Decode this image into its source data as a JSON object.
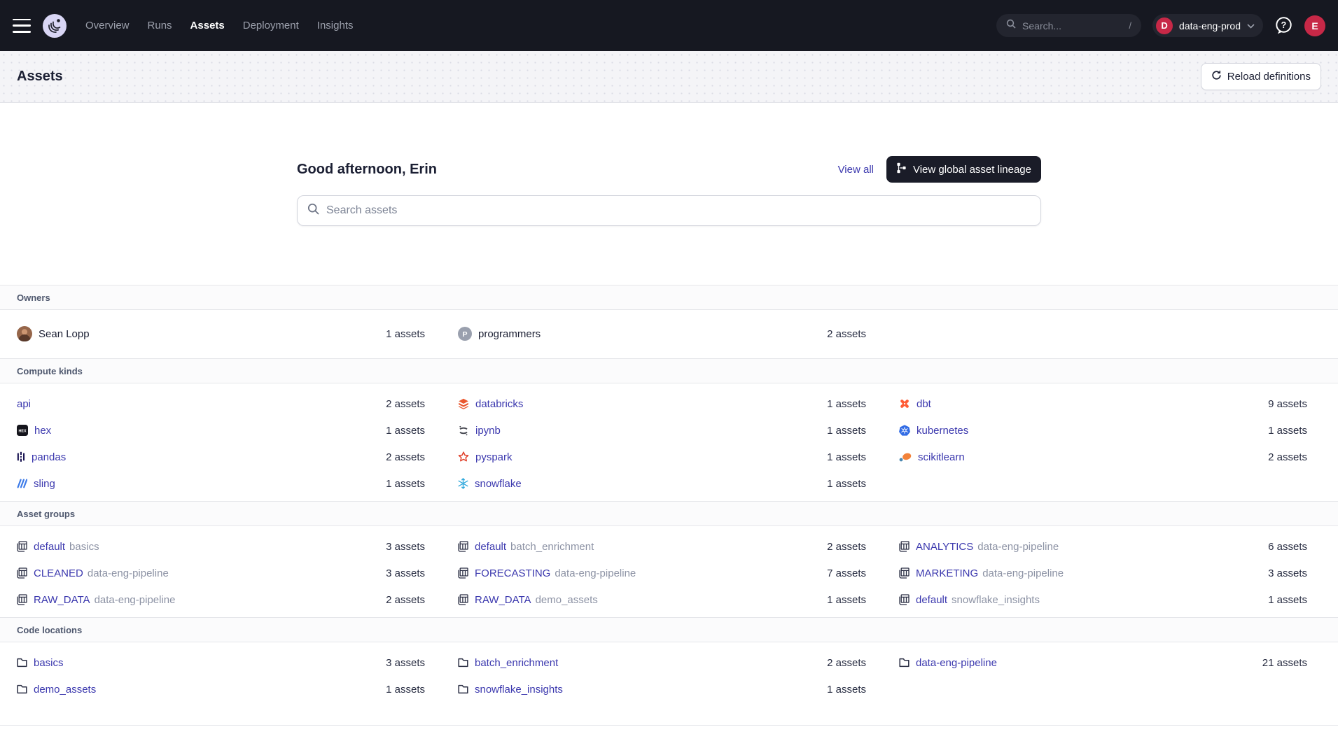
{
  "nav": {
    "items": [
      "Overview",
      "Runs",
      "Assets",
      "Deployment",
      "Insights"
    ],
    "active": "Assets",
    "search_placeholder": "Search...",
    "search_shortcut": "/",
    "deployment_initial": "D",
    "deployment_name": "data-eng-prod",
    "user_initial": "E"
  },
  "header": {
    "title": "Assets",
    "reload_label": "Reload definitions"
  },
  "hero": {
    "greeting": "Good afternoon, Erin",
    "view_all": "View all",
    "lineage_button": "View global asset lineage",
    "search_placeholder": "Search assets"
  },
  "colors": {
    "link": "#3b38ae",
    "nav_background": "#161821",
    "accent_red": "#c72847",
    "dark_button": "#1a1c28",
    "dbt_orange": "#ff5c35",
    "kubernetes_blue": "#326ce5",
    "snowflake_blue": "#2fa8dc"
  },
  "sections": [
    {
      "id": "owners",
      "title": "Owners",
      "type": "plain",
      "items": [
        {
          "icon": "user-avatar",
          "label": "Sean Lopp",
          "count": "1 assets"
        },
        {
          "icon": "team-badge",
          "label": "programmers",
          "count": "2 assets"
        }
      ]
    },
    {
      "id": "compute-kinds",
      "title": "Compute kinds",
      "type": "link",
      "items": [
        {
          "icon": null,
          "label": "api",
          "count": "2 assets"
        },
        {
          "icon": "databricks",
          "label": "databricks",
          "count": "1 assets"
        },
        {
          "icon": "dbt",
          "label": "dbt",
          "count": "9 assets"
        },
        {
          "icon": "hex",
          "label": "hex",
          "count": "1 assets"
        },
        {
          "icon": "ipynb",
          "label": "ipynb",
          "count": "1 assets"
        },
        {
          "icon": "kubernetes",
          "label": "kubernetes",
          "count": "1 assets"
        },
        {
          "icon": "pandas",
          "label": "pandas",
          "count": "2 assets"
        },
        {
          "icon": "pyspark",
          "label": "pyspark",
          "count": "1 assets"
        },
        {
          "icon": "scikitlearn",
          "label": "scikitlearn",
          "count": "2 assets"
        },
        {
          "icon": "sling",
          "label": "sling",
          "count": "1 assets"
        },
        {
          "icon": "snowflake",
          "label": "snowflake",
          "count": "1 assets"
        }
      ]
    },
    {
      "id": "asset-groups",
      "title": "Asset groups",
      "type": "group",
      "items": [
        {
          "icon": "asset-group",
          "primary": "default",
          "secondary": "basics",
          "count": "3 assets"
        },
        {
          "icon": "asset-group",
          "primary": "default",
          "secondary": "batch_enrichment",
          "count": "2 assets"
        },
        {
          "icon": "asset-group",
          "primary": "ANALYTICS",
          "secondary": "data-eng-pipeline",
          "count": "6 assets"
        },
        {
          "icon": "asset-group",
          "primary": "CLEANED",
          "secondary": "data-eng-pipeline",
          "count": "3 assets"
        },
        {
          "icon": "asset-group",
          "primary": "FORECASTING",
          "secondary": "data-eng-pipeline",
          "count": "7 assets"
        },
        {
          "icon": "asset-group",
          "primary": "MARKETING",
          "secondary": "data-eng-pipeline",
          "count": "3 assets"
        },
        {
          "icon": "asset-group",
          "primary": "RAW_DATA",
          "secondary": "data-eng-pipeline",
          "count": "2 assets"
        },
        {
          "icon": "asset-group",
          "primary": "RAW_DATA",
          "secondary": "demo_assets",
          "count": "1 assets"
        },
        {
          "icon": "asset-group",
          "primary": "default",
          "secondary": "snowflake_insights",
          "count": "1 assets"
        }
      ]
    },
    {
      "id": "code-locations",
      "title": "Code locations",
      "type": "link",
      "items": [
        {
          "icon": "folder",
          "label": "basics",
          "count": "3 assets"
        },
        {
          "icon": "folder",
          "label": "batch_enrichment",
          "count": "2 assets"
        },
        {
          "icon": "folder",
          "label": "data-eng-pipeline",
          "count": "21 assets"
        },
        {
          "icon": "folder",
          "label": "demo_assets",
          "count": "1 assets"
        },
        {
          "icon": "folder",
          "label": "snowflake_insights",
          "count": "1 assets"
        }
      ]
    }
  ]
}
